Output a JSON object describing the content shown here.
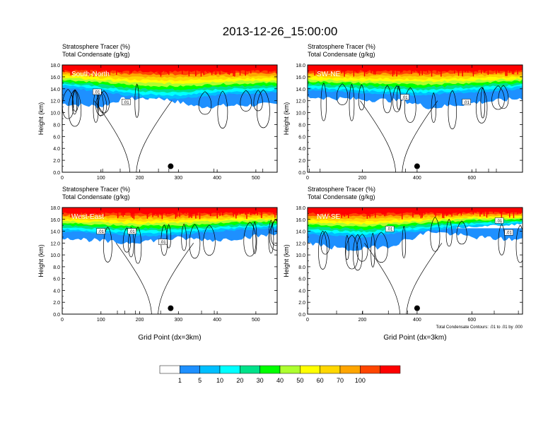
{
  "title": "2013-12-26_15:00:00",
  "subtitle_line1": "Stratosphere Tracer   (%)",
  "subtitle_line2": "Total Condensate   (g/kg)",
  "ylabel": "Height (km)",
  "xlabel": "Grid Point (dx=3km)",
  "contour_note": "Total Condensate Contours: .01 to .01 by .000",
  "colors": {
    "background": "#ffffff",
    "colorbar": [
      "#ffffff",
      "#1e90ff",
      "#00bfff",
      "#00ffff",
      "#00e28a",
      "#00ff00",
      "#adff2f",
      "#ffff00",
      "#ffd700",
      "#ffa500",
      "#ff4500",
      "#ff0000"
    ]
  },
  "chart_data": [
    {
      "type": "heatmap",
      "panel": "South-North",
      "title": "Stratosphere Tracer (%) / Total Condensate (g/kg)",
      "xlabel": "",
      "ylabel": "Height (km)",
      "xlim": [
        0,
        555
      ],
      "ylim": [
        0,
        18
      ],
      "x_ticks": [
        0,
        100,
        200,
        300,
        400,
        500
      ],
      "y_ticks": [
        0.0,
        2.0,
        4.0,
        6.0,
        8.0,
        10.0,
        12.0,
        14.0,
        16.0,
        18.0
      ],
      "tracer_band_bottom_km": [
        [
          0,
          14.3
        ],
        [
          100,
          13.5
        ],
        [
          200,
          12.6
        ],
        [
          300,
          12.4
        ],
        [
          400,
          13.0
        ],
        [
          500,
          13.3
        ],
        [
          555,
          13.4
        ]
      ],
      "cloud_bottom_km": [
        [
          0,
          11.5
        ],
        [
          100,
          11.0
        ],
        [
          150,
          12.2
        ],
        [
          250,
          12.5
        ],
        [
          350,
          11.0
        ],
        [
          450,
          11.2
        ],
        [
          555,
          11.4
        ]
      ],
      "contour_labels": [
        {
          "text": ".01",
          "x": 90,
          "y": 13.5
        },
        {
          "text": ".01",
          "x": 165,
          "y": 11.8
        }
      ],
      "marker": {
        "x": 280,
        "y": 1.0
      }
    },
    {
      "type": "heatmap",
      "panel": "SW-NE",
      "title": "Stratosphere Tracer (%) / Total Condensate (g/kg)",
      "xlabel": "",
      "ylabel": "Height (km)",
      "xlim": [
        0,
        785
      ],
      "ylim": [
        0,
        18
      ],
      "x_ticks": [
        0,
        200,
        400,
        600
      ],
      "y_ticks": [
        0.0,
        2.0,
        4.0,
        6.0,
        8.0,
        10.0,
        12.0,
        14.0,
        16.0,
        18.0
      ],
      "tracer_band_bottom_km": [
        [
          0,
          13.8
        ],
        [
          200,
          13.3
        ],
        [
          400,
          12.9
        ],
        [
          600,
          13.4
        ],
        [
          785,
          14.0
        ]
      ],
      "cloud_bottom_km": [
        [
          0,
          12.6
        ],
        [
          200,
          12.2
        ],
        [
          350,
          12.0
        ],
        [
          450,
          10.8
        ],
        [
          600,
          11.6
        ],
        [
          785,
          12.4
        ]
      ],
      "contour_labels": [
        {
          "text": ".01",
          "x": 355,
          "y": 12.6
        },
        {
          "text": ".01",
          "x": 580,
          "y": 11.8
        }
      ],
      "marker": {
        "x": 400,
        "y": 1.0
      }
    },
    {
      "type": "heatmap",
      "panel": "West-East",
      "title": "Stratosphere Tracer (%) / Total Condensate (g/kg)",
      "xlabel": "Grid Point (dx=3km)",
      "ylabel": "Height (km)",
      "xlim": [
        0,
        555
      ],
      "ylim": [
        0,
        18
      ],
      "x_ticks": [
        0,
        100,
        200,
        300,
        400,
        500
      ],
      "y_ticks": [
        0.0,
        2.0,
        4.0,
        6.0,
        8.0,
        10.0,
        12.0,
        14.0,
        16.0,
        18.0
      ],
      "tracer_band_bottom_km": [
        [
          0,
          14.0
        ],
        [
          100,
          13.6
        ],
        [
          200,
          13.2
        ],
        [
          300,
          13.4
        ],
        [
          400,
          14.0
        ],
        [
          500,
          14.4
        ],
        [
          555,
          14.5
        ]
      ],
      "cloud_bottom_km": [
        [
          0,
          13.0
        ],
        [
          150,
          12.0
        ],
        [
          300,
          12.8
        ],
        [
          400,
          12.5
        ],
        [
          555,
          13.5
        ]
      ],
      "contour_labels": [
        {
          "text": ".01",
          "x": 100,
          "y": 14.0
        },
        {
          "text": ".01",
          "x": 180,
          "y": 14.0
        },
        {
          "text": ".01",
          "x": 260,
          "y": 12.2
        }
      ],
      "marker": {
        "x": 280,
        "y": 1.0
      }
    },
    {
      "type": "heatmap",
      "panel": "NW-SE",
      "title": "Stratosphere Tracer (%) / Total Condensate (g/kg)",
      "xlabel": "Grid Point (dx=3km)",
      "ylabel": "Height (km)",
      "xlim": [
        0,
        785
      ],
      "ylim": [
        0,
        18
      ],
      "x_ticks": [
        0,
        200,
        400,
        600
      ],
      "y_ticks": [
        0.0,
        2.0,
        4.0,
        6.0,
        8.0,
        10.0,
        12.0,
        14.0,
        16.0,
        18.0
      ],
      "tracer_band_bottom_km": [
        [
          0,
          13.6
        ],
        [
          200,
          13.0
        ],
        [
          400,
          14.0
        ],
        [
          600,
          14.8
        ],
        [
          785,
          15.2
        ]
      ],
      "cloud_bottom_km": [
        [
          0,
          12.0
        ],
        [
          150,
          10.8
        ],
        [
          300,
          11.5
        ],
        [
          450,
          14.0
        ],
        [
          600,
          13.0
        ],
        [
          785,
          12.5
        ]
      ],
      "contour_labels": [
        {
          "text": ".01",
          "x": 300,
          "y": 14.4
        },
        {
          "text": ".01",
          "x": 700,
          "y": 15.8
        },
        {
          "text": ".01",
          "x": 735,
          "y": 13.8
        }
      ],
      "marker": {
        "x": 400,
        "y": 1.0
      }
    }
  ],
  "colorbar": {
    "labels": [
      "1",
      "5",
      "10",
      "20",
      "30",
      "40",
      "50",
      "60",
      "70",
      "100"
    ]
  }
}
